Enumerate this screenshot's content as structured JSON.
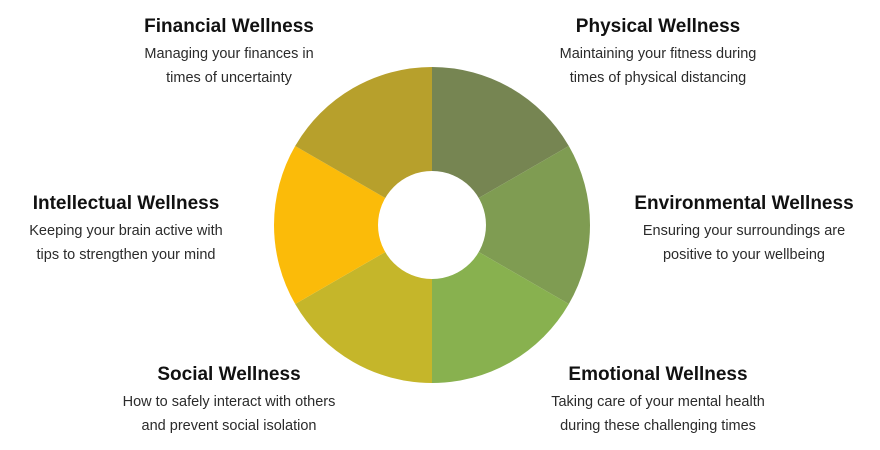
{
  "wheel": {
    "segments": [
      {
        "key": "physical",
        "color": "#768552"
      },
      {
        "key": "environmental",
        "color": "#7f9c52"
      },
      {
        "key": "emotional",
        "color": "#88b14f"
      },
      {
        "key": "social",
        "color": "#c5b62a"
      },
      {
        "key": "intellectual",
        "color": "#fbbb09"
      },
      {
        "key": "financial",
        "color": "#b7a02c"
      }
    ],
    "center_color": "#ffffff"
  },
  "labels": {
    "financial": {
      "title": "Financial Wellness",
      "desc": "Managing your finances in\ntimes of uncertainty"
    },
    "physical": {
      "title": "Physical Wellness",
      "desc": "Maintaining your fitness during\ntimes of physical distancing"
    },
    "intellectual": {
      "title": "Intellectual Wellness",
      "desc": "Keeping your brain active with\ntips to strengthen your mind"
    },
    "environmental": {
      "title": "Environmental Wellness",
      "desc": "Ensuring your surroundings are\npositive to your wellbeing"
    },
    "social": {
      "title": "Social Wellness",
      "desc": "How to safely interact with others\nand prevent social isolation"
    },
    "emotional": {
      "title": "Emotional Wellness",
      "desc": "Taking care of your mental health\nduring these challenging times"
    }
  }
}
